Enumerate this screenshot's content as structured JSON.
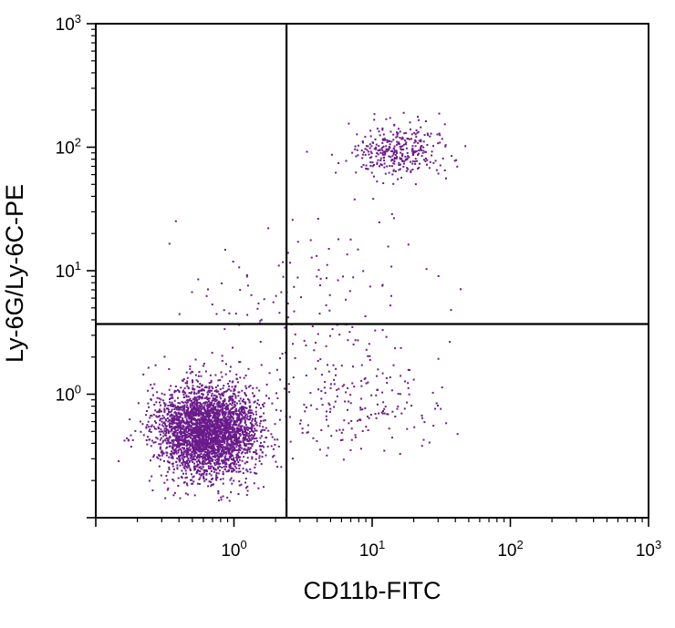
{
  "chart_data": {
    "type": "scatter",
    "title": "",
    "xlabel": "CD11b-FITC",
    "ylabel": "Ly-6G/Ly-6C-PE",
    "x_scale": "log",
    "y_scale": "log",
    "xlim": [
      0.1,
      1000
    ],
    "ylim": [
      0.1,
      1000
    ],
    "x_tick_labels": [
      {
        "base": "10",
        "exp": "0"
      },
      {
        "base": "10",
        "exp": "1"
      },
      {
        "base": "10",
        "exp": "2"
      },
      {
        "base": "10",
        "exp": "3"
      }
    ],
    "y_tick_labels": [
      {
        "base": "10",
        "exp": "0"
      },
      {
        "base": "10",
        "exp": "1"
      },
      {
        "base": "10",
        "exp": "2"
      },
      {
        "base": "10",
        "exp": "3"
      }
    ],
    "quadrant_gate": {
      "x": 2.4,
      "y": 3.7
    },
    "point_color": "#6a1b8a",
    "grid": false,
    "legend": "none",
    "populations": [
      {
        "center_x": 0.65,
        "center_y": 0.5,
        "spread_log_x": 0.18,
        "spread_log_y": 0.18,
        "count": 3200
      },
      {
        "center_x": 15,
        "center_y": 95,
        "spread_log_x": 0.17,
        "spread_log_y": 0.11,
        "count": 340
      },
      {
        "center_x": 8,
        "center_y": 0.8,
        "spread_log_x": 0.32,
        "spread_log_y": 0.2,
        "count": 170
      },
      {
        "center_x": 3,
        "center_y": 5,
        "spread_log_x": 0.45,
        "spread_log_y": 0.4,
        "count": 160
      }
    ]
  }
}
